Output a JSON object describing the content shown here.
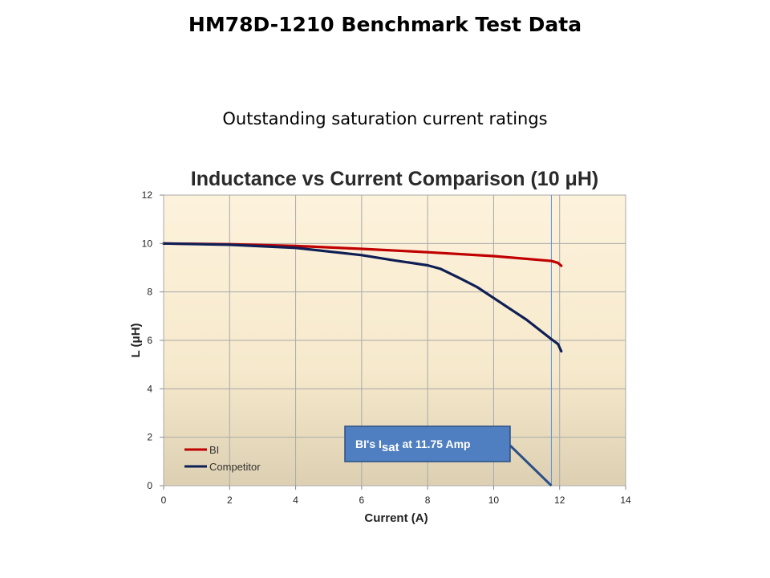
{
  "slide": {
    "title": "HM78D-1210 Benchmark Test Data",
    "subtitle": "Outstanding saturation current ratings"
  },
  "colors": {
    "bi": "#c00000",
    "competitor": "#0f1f55",
    "callout_fill": "#4f7fc0",
    "callout_border": "#2c4f86",
    "marker_line": "#5b8fd6",
    "plot_top": "#fdf2dc",
    "plot_bottom": "#ddd0b2"
  },
  "chart_data": {
    "type": "line",
    "title": "Inductance vs Current Comparison (10 μH)",
    "xlabel": "Current (A)",
    "ylabel": "L (μH)",
    "xlim": [
      0,
      14
    ],
    "ylim": [
      0,
      12
    ],
    "xticks": [
      "0",
      "2",
      "4",
      "6",
      "8",
      "10",
      "12",
      "14"
    ],
    "yticks": [
      "0",
      "2",
      "4",
      "6",
      "8",
      "10",
      "12"
    ],
    "grid": true,
    "legend_position": "bottom-left",
    "series": [
      {
        "name": "BI",
        "color": "#c00000",
        "x": [
          0,
          2,
          4,
          6,
          8,
          10,
          11.75,
          11.95,
          12.05
        ],
        "y": [
          10.0,
          9.97,
          9.9,
          9.78,
          9.64,
          9.48,
          9.28,
          9.2,
          9.08
        ]
      },
      {
        "name": "Competitor",
        "color": "#0f1f55",
        "x": [
          0,
          2,
          4,
          6,
          7,
          8,
          8.4,
          9,
          9.5,
          10,
          11,
          11.75,
          11.95,
          12.05
        ],
        "y": [
          10.0,
          9.95,
          9.82,
          9.52,
          9.3,
          9.1,
          8.95,
          8.55,
          8.2,
          7.75,
          6.85,
          6.05,
          5.85,
          5.55
        ]
      }
    ],
    "annotations": [
      {
        "text_main": "BI's I",
        "text_sub": "sat",
        "text_tail": " at 11.75 Amp",
        "x": 11.75
      }
    ]
  }
}
